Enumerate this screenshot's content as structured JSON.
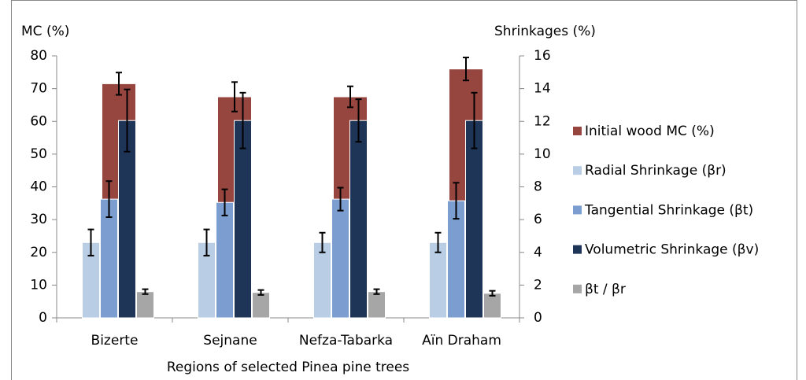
{
  "chart_data": {
    "type": "bar",
    "y_label": "MC (%)",
    "y2_label": "Shrinkages (%)",
    "x_label": "Regions of selected Pinea pine trees",
    "categories": [
      "Bizerte",
      "Sejnane",
      "Nefza-Tabarka",
      "Aïn Draham"
    ],
    "series": [
      {
        "name": "Initial wood MC (%)",
        "color": "#96463f",
        "axis": "y",
        "values": [
          71.5,
          67.5,
          67.5,
          76
        ],
        "errors": [
          3.4,
          4.5,
          3.2,
          3.5
        ]
      },
      {
        "name": "Radial Shrinkage (βr)",
        "color": "#b9cde5",
        "axis": "y2",
        "values": [
          4.6,
          4.6,
          4.6,
          4.6
        ],
        "errors": [
          0.8,
          0.8,
          0.6,
          0.6
        ]
      },
      {
        "name": "Tangential Shrinkage (βt)",
        "color": "#7b9dcf",
        "axis": "y2",
        "values": [
          7.25,
          7.05,
          7.25,
          7.15
        ],
        "errors": [
          1.1,
          0.8,
          0.7,
          1.1
        ]
      },
      {
        "name": "Volumetric Shrinkage (βv)",
        "color": "#1f3557",
        "axis": "y2",
        "values": [
          12.05,
          12.05,
          12.05,
          12.05
        ],
        "errors": [
          1.9,
          1.7,
          1.3,
          1.7
        ]
      },
      {
        "name": "βt / βr",
        "color": "#a6a6a6",
        "axis": "y2",
        "values": [
          1.6,
          1.55,
          1.6,
          1.5
        ],
        "errors": [
          0.15,
          0.15,
          0.15,
          0.15
        ]
      }
    ],
    "ylim": [
      0,
      80
    ],
    "yticks": [
      0,
      10,
      20,
      30,
      40,
      50,
      60,
      70,
      80
    ],
    "y2lim": [
      0,
      16
    ],
    "y2ticks": [
      0,
      2,
      4,
      6,
      8,
      10,
      12,
      14,
      16
    ],
    "grid": false,
    "legend": "right"
  }
}
